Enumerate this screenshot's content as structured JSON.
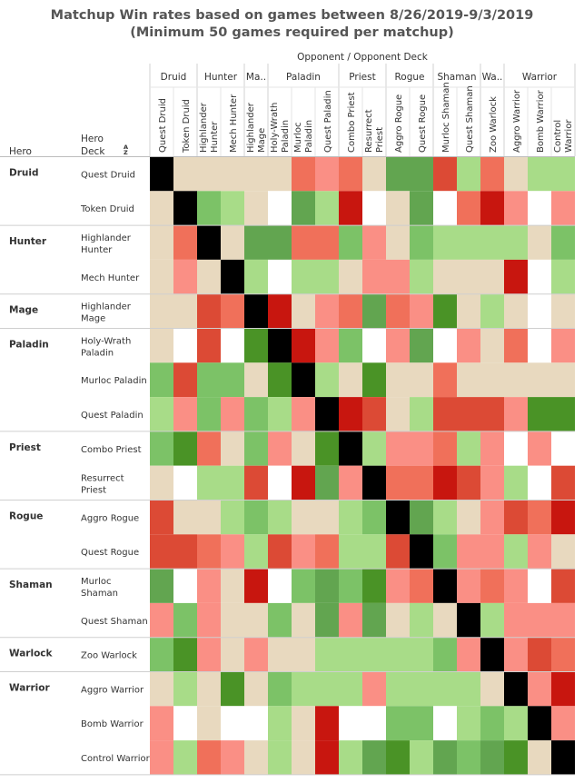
{
  "title_line1": "Matchup Win rates based on games between 8/26/2019-9/3/2019",
  "title_line2": "(Minimum 50 games required per matchup)",
  "chart_data": {
    "type": "heatmap",
    "title": "Matchup Win rates based on games between 8/26/2019-9/3/2019",
    "subtitle": "(Minimum 50 games required per matchup)",
    "column_header": "Opponent  /  Opponent Deck",
    "row_headers": [
      "Hero",
      "Hero Deck"
    ],
    "sort_icon": "sort-ascending-icon",
    "col_groups": [
      {
        "label": "Druid",
        "span": 2
      },
      {
        "label": "Hunter",
        "span": 2
      },
      {
        "label": "Ma..",
        "span": 1
      },
      {
        "label": "Paladin",
        "span": 3
      },
      {
        "label": "Priest",
        "span": 2
      },
      {
        "label": "Rogue",
        "span": 2
      },
      {
        "label": "Shaman",
        "span": 2
      },
      {
        "label": "Wa..",
        "span": 1
      },
      {
        "label": "Warrior",
        "span": 3
      }
    ],
    "columns": [
      "Quest Druid",
      "Token Druid",
      "Highlander Hunter",
      "Mech Hunter",
      "Highlander Mage",
      "Holy-Wrath Paladin",
      "Murloc Paladin",
      "Quest Paladin",
      "Combo Priest",
      "Resurrect Priest",
      "Aggro Rogue",
      "Quest Rogue",
      "Murloc Shaman",
      "Quest Shaman",
      "Zoo Warlock",
      "Aggro Warrior",
      "Bomb Warrior",
      "Control Warrior"
    ],
    "row_groups": [
      {
        "label": "Druid",
        "span": 2
      },
      {
        "label": "Hunter",
        "span": 2
      },
      {
        "label": "Mage",
        "span": 1
      },
      {
        "label": "Paladin",
        "span": 3
      },
      {
        "label": "Priest",
        "span": 2
      },
      {
        "label": "Rogue",
        "span": 2
      },
      {
        "label": "Shaman",
        "span": 2
      },
      {
        "label": "Warlock",
        "span": 1
      },
      {
        "label": "Warrior",
        "span": 3
      }
    ],
    "rows": [
      "Quest Druid",
      "Token Druid",
      "Highlander Hunter",
      "Mech Hunter",
      "Highlander Mage",
      "Holy-Wrath Paladin",
      "Murloc Paladin",
      "Quest Paladin",
      "Combo Priest",
      "Resurrect Priest",
      "Aggro Rogue",
      "Quest Rogue",
      "Murloc Shaman",
      "Quest Shaman",
      "Zoo Warlock",
      "Aggro Warrior",
      "Bomb Warrior",
      "Control Warrior"
    ],
    "color_levels": {
      "X": "#000000",
      "S": "#c8160f",
      "R": "#dc4a35",
      "M": "#f0705a",
      "L": "#fa8f85",
      "N": "#e8d9bf",
      "W": "#ffffff",
      "G": "#a8dc88",
      "H": "#7cc267",
      "D": "#62a550",
      "K": "#4a9326"
    },
    "cells": [
      "XNNNNNMLMNDDRGMNGG",
      "NXHGNWDGSWNDWMSLWL",
      "NMXNDDMMHLNHGGGGNH",
      "NLNXGWGGNLLGNNNSWG",
      "NNRMXSNLMDMLKNGNWN",
      "NWRWKXSLHWLDWLNMWL",
      "HRHHNKXGNKNNMNNNNN",
      "GLHLHGLXSRNGRRRLKK",
      "HKMNHLNKXGLLMGLWLW",
      "NWGGRWSDLXMMSRLGWR",
      "RNNGHGNNGHXDGNLRMS",
      "RRMLGRLMGGRXHLLGLN",
      "DWLNSWHDHKLMXLMLWR",
      "LHLNNHNDLDNGNXGLLL",
      "HKLNLNNGGGGGHLXLRM",
      "NGNKNHGGGLGGGGNXLS",
      "LWNWWGNSWWHHWGHGXL",
      "LGMLNGNSGDKGDHDKNX"
    ]
  }
}
